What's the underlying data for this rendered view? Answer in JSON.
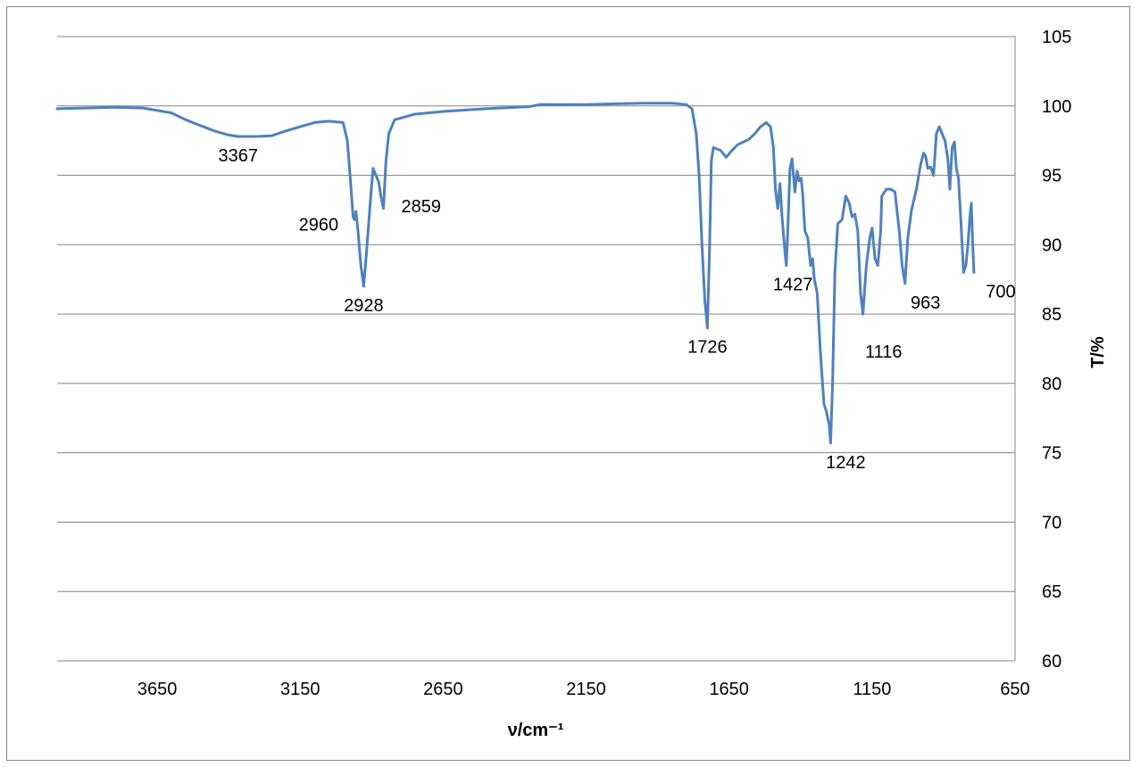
{
  "chart_data": {
    "type": "line",
    "title": "",
    "xlabel": "ν/cm⁻¹",
    "ylabel": "T/%",
    "xlim": [
      4000,
      650
    ],
    "ylim": [
      60,
      105
    ],
    "x_reversed": true,
    "y_axis_side": "right",
    "grid": true,
    "legend": "none",
    "series_color": "#4F81BD",
    "gridline_color": "#868686",
    "xticks": [
      3650,
      3150,
      2650,
      2150,
      1650,
      1150,
      650
    ],
    "yticks": [
      60,
      65,
      70,
      75,
      80,
      85,
      90,
      95,
      100,
      105
    ],
    "series": [
      {
        "points": [
          [
            4000,
            99.8
          ],
          [
            3900,
            99.85
          ],
          [
            3800,
            99.9
          ],
          [
            3700,
            99.85
          ],
          [
            3600,
            99.5
          ],
          [
            3550,
            99.0
          ],
          [
            3500,
            98.6
          ],
          [
            3450,
            98.2
          ],
          [
            3400,
            97.9
          ],
          [
            3367,
            97.8
          ],
          [
            3300,
            97.8
          ],
          [
            3250,
            97.85
          ],
          [
            3200,
            98.2
          ],
          [
            3150,
            98.5
          ],
          [
            3100,
            98.8
          ],
          [
            3050,
            98.9
          ],
          [
            3000,
            98.8
          ],
          [
            2985,
            97.5
          ],
          [
            2972,
            94.0
          ],
          [
            2965,
            92.0
          ],
          [
            2960,
            91.8
          ],
          [
            2955,
            92.4
          ],
          [
            2948,
            91.0
          ],
          [
            2938,
            88.5
          ],
          [
            2928,
            87.0
          ],
          [
            2918,
            89.5
          ],
          [
            2905,
            93.0
          ],
          [
            2895,
            95.5
          ],
          [
            2885,
            95.0
          ],
          [
            2875,
            94.5
          ],
          [
            2868,
            93.5
          ],
          [
            2859,
            92.6
          ],
          [
            2850,
            96.0
          ],
          [
            2840,
            98.0
          ],
          [
            2820,
            99.0
          ],
          [
            2750,
            99.4
          ],
          [
            2650,
            99.6
          ],
          [
            2500,
            99.8
          ],
          [
            2350,
            99.95
          ],
          [
            2310,
            100.1
          ],
          [
            2250,
            100.1
          ],
          [
            2150,
            100.1
          ],
          [
            2050,
            100.15
          ],
          [
            1950,
            100.2
          ],
          [
            1850,
            100.2
          ],
          [
            1800,
            100.1
          ],
          [
            1780,
            99.8
          ],
          [
            1765,
            98.0
          ],
          [
            1755,
            95.0
          ],
          [
            1745,
            90.0
          ],
          [
            1735,
            86.0
          ],
          [
            1726,
            84.0
          ],
          [
            1718,
            90.0
          ],
          [
            1712,
            96.0
          ],
          [
            1705,
            97.0
          ],
          [
            1680,
            96.8
          ],
          [
            1660,
            96.3
          ],
          [
            1640,
            96.8
          ],
          [
            1620,
            97.2
          ],
          [
            1600,
            97.4
          ],
          [
            1580,
            97.6
          ],
          [
            1560,
            98.0
          ],
          [
            1540,
            98.5
          ],
          [
            1520,
            98.8
          ],
          [
            1505,
            98.5
          ],
          [
            1495,
            97.0
          ],
          [
            1488,
            94.0
          ],
          [
            1480,
            92.6
          ],
          [
            1472,
            94.4
          ],
          [
            1465,
            92.0
          ],
          [
            1455,
            89.5
          ],
          [
            1450,
            88.5
          ],
          [
            1444,
            91.5
          ],
          [
            1437,
            95.5
          ],
          [
            1430,
            96.2
          ],
          [
            1427,
            95.5
          ],
          [
            1420,
            93.8
          ],
          [
            1412,
            95.3
          ],
          [
            1405,
            94.6
          ],
          [
            1398,
            94.8
          ],
          [
            1392,
            93.5
          ],
          [
            1385,
            91.0
          ],
          [
            1375,
            90.5
          ],
          [
            1365,
            88.5
          ],
          [
            1358,
            89.0
          ],
          [
            1352,
            87.5
          ],
          [
            1342,
            86.5
          ],
          [
            1330,
            82.0
          ],
          [
            1318,
            78.5
          ],
          [
            1310,
            78.0
          ],
          [
            1300,
            77.0
          ],
          [
            1295,
            75.7
          ],
          [
            1288,
            80.0
          ],
          [
            1280,
            88.0
          ],
          [
            1270,
            91.5
          ],
          [
            1255,
            91.8
          ],
          [
            1242,
            93.5
          ],
          [
            1230,
            93.0
          ],
          [
            1220,
            92.0
          ],
          [
            1210,
            92.2
          ],
          [
            1200,
            91.0
          ],
          [
            1190,
            86.5
          ],
          [
            1182,
            85.0
          ],
          [
            1170,
            88.5
          ],
          [
            1158,
            90.5
          ],
          [
            1150,
            91.2
          ],
          [
            1140,
            89.0
          ],
          [
            1130,
            88.5
          ],
          [
            1120,
            91.0
          ],
          [
            1116,
            93.5
          ],
          [
            1100,
            94.0
          ],
          [
            1085,
            94.0
          ],
          [
            1070,
            93.8
          ],
          [
            1055,
            91.0
          ],
          [
            1045,
            88.5
          ],
          [
            1035,
            87.2
          ],
          [
            1025,
            90.5
          ],
          [
            1012,
            92.5
          ],
          [
            995,
            94.0
          ],
          [
            980,
            95.8
          ],
          [
            970,
            96.6
          ],
          [
            963,
            96.4
          ],
          [
            955,
            95.5
          ],
          [
            945,
            95.6
          ],
          [
            935,
            95.0
          ],
          [
            925,
            98.0
          ],
          [
            915,
            98.5
          ],
          [
            905,
            98.0
          ],
          [
            895,
            97.5
          ],
          [
            885,
            96.2
          ],
          [
            878,
            94.0
          ],
          [
            870,
            97.0
          ],
          [
            862,
            97.4
          ],
          [
            855,
            95.5
          ],
          [
            848,
            94.8
          ],
          [
            840,
            92.0
          ],
          [
            830,
            88.0
          ],
          [
            822,
            88.5
          ],
          [
            815,
            90.0
          ],
          [
            808,
            92.0
          ],
          [
            803,
            93.0
          ],
          [
            798,
            90.0
          ],
          [
            794,
            88.0
          ]
        ]
      }
    ],
    "annotations": [
      {
        "text": "3367",
        "x": 3367,
        "y": 97.8,
        "pos": "below"
      },
      {
        "text": "2960",
        "x": 2960,
        "y": 91.8,
        "pos": "left"
      },
      {
        "text": "2928",
        "x": 2928,
        "y": 87.0,
        "pos": "below"
      },
      {
        "text": "2859",
        "x": 2859,
        "y": 92.6,
        "pos": "right"
      },
      {
        "text": "1726",
        "x": 1726,
        "y": 84.0,
        "pos": "below"
      },
      {
        "text": "1427",
        "x": 1427,
        "y": 88.5,
        "pos": "below"
      },
      {
        "text": "1242",
        "x": 1242,
        "y": 75.7,
        "pos": "below"
      },
      {
        "text": "1116",
        "x": 1116,
        "y": 84.8,
        "pos": "below-right"
      },
      {
        "text": "963",
        "x": 963,
        "y": 87.2,
        "pos": "below"
      },
      {
        "text": "700",
        "x": 700,
        "y": 88.0,
        "pos": "below"
      }
    ]
  }
}
